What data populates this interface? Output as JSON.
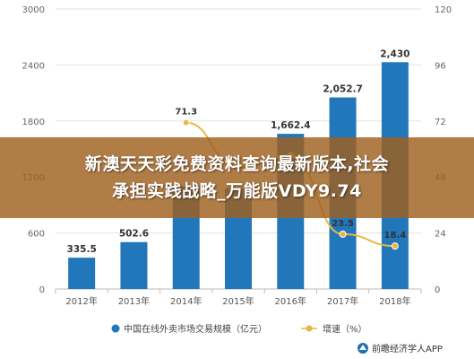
{
  "overlay": {
    "line1": "新澳天天彩免费资料查询最新版本,社会",
    "line2": "承担实践战略_万能版VDY9.74"
  },
  "source": "前瞻经济学人APP",
  "colors": {
    "bar": "#2277bb",
    "line": "#e8b840"
  },
  "chart_data": {
    "type": "bar",
    "categories": [
      "2012年",
      "2013年",
      "2014年",
      "2015年",
      "2016年",
      "2017年",
      "2018年"
    ],
    "series": [
      {
        "name": "中国在线外卖市场交易规模（亿元）",
        "type": "bar",
        "axis": "left",
        "values": [
          335.5,
          502.6,
          1100,
          1080,
          1662.4,
          2052.7,
          2430
        ],
        "labels": [
          "335.5",
          "502.6",
          "",
          "",
          "1,662.4",
          "2,052.7",
          "2,430"
        ]
      },
      {
        "name": "增速（%）",
        "type": "line",
        "axis": "right",
        "values": [
          null,
          null,
          71.3,
          52,
          57,
          23.5,
          18.4
        ],
        "labels": [
          "",
          "",
          "71.3",
          "",
          "",
          "23.5",
          "18.4"
        ]
      }
    ],
    "ylim_left": [
      0,
      3000
    ],
    "yticks_left": [
      "0",
      "600",
      "1200",
      "1800",
      "2400",
      "3000"
    ],
    "ylim_right": [
      0,
      120
    ],
    "yticks_right": [
      "0",
      "24",
      "48",
      "72",
      "96",
      "120"
    ],
    "grid": true,
    "legend": "bottom"
  }
}
